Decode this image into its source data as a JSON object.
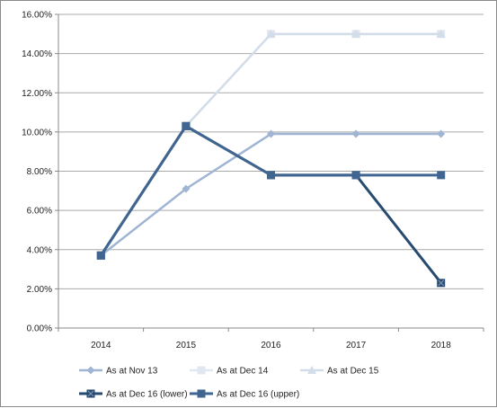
{
  "chart_data": {
    "type": "line",
    "title": "",
    "xlabel": "",
    "ylabel": "",
    "categories": [
      "2014",
      "2015",
      "2016",
      "2017",
      "2018"
    ],
    "ylim": [
      0,
      16
    ],
    "yticks": [
      "0.00%",
      "2.00%",
      "4.00%",
      "6.00%",
      "8.00%",
      "10.00%",
      "12.00%",
      "14.00%",
      "16.00%"
    ],
    "grid": "horizontal",
    "legend_position": "bottom",
    "series": [
      {
        "name": "As at Nov 13",
        "values": [
          3.7,
          7.1,
          9.9,
          9.9,
          9.9
        ],
        "color": "#9fb5d3",
        "marker": "diamond",
        "width": 2.5
      },
      {
        "name": "As at Dec 14",
        "values": [
          3.7,
          10.3,
          15.0,
          15.0,
          15.0
        ],
        "color": "#e0e7f1",
        "marker": "square",
        "width": 2.5
      },
      {
        "name": "As at Dec 15",
        "values": [
          3.7,
          10.3,
          15.0,
          15.0,
          15.0
        ],
        "color": "#d3dde9",
        "marker": "triangle",
        "width": 2.5
      },
      {
        "name": "As at Dec 16 (lower)",
        "values": [
          3.7,
          10.3,
          7.8,
          7.8,
          2.3
        ],
        "color": "#274a70",
        "marker": "x-square",
        "width": 3
      },
      {
        "name": "As at Dec 16 (upper)",
        "values": [
          3.7,
          10.3,
          7.8,
          7.8,
          7.8
        ],
        "color": "#3f6590",
        "marker": "square",
        "width": 3
      }
    ]
  }
}
